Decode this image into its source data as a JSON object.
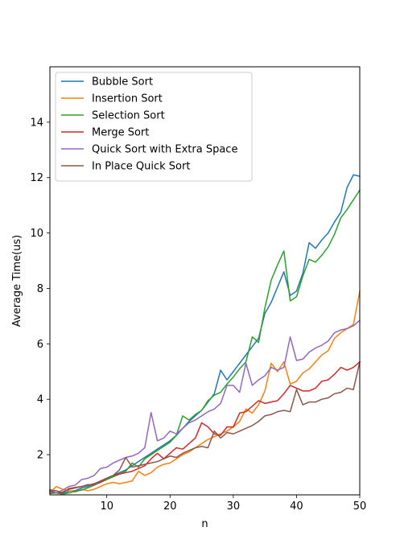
{
  "chart_data": {
    "type": "line",
    "title": "",
    "xlabel": "n",
    "ylabel": "Average Time(us)",
    "xlim": [
      1,
      50
    ],
    "ylim": [
      0.55,
      16.0
    ],
    "xticks": [
      10,
      20,
      30,
      40,
      50
    ],
    "yticks": [
      2,
      4,
      6,
      8,
      10,
      12,
      14
    ],
    "grid": false,
    "legend_position": "top-left",
    "x": [
      1,
      2,
      3,
      4,
      5,
      6,
      7,
      8,
      9,
      10,
      11,
      12,
      13,
      14,
      15,
      16,
      17,
      18,
      19,
      20,
      21,
      22,
      23,
      24,
      25,
      26,
      27,
      28,
      29,
      30,
      31,
      32,
      33,
      34,
      35,
      36,
      37,
      38,
      39,
      40,
      41,
      42,
      43,
      44,
      45,
      46,
      47,
      48,
      49,
      50
    ],
    "series": [
      {
        "name": "Bubble Sort",
        "color": "#1f77b4",
        "values": [
          0.65,
          0.62,
          0.6,
          0.68,
          0.7,
          0.8,
          0.85,
          0.95,
          1.05,
          1.15,
          1.25,
          1.35,
          1.45,
          1.6,
          1.75,
          1.9,
          2.05,
          2.2,
          2.35,
          2.5,
          2.7,
          2.95,
          3.2,
          3.4,
          3.6,
          3.9,
          4.2,
          5.05,
          4.7,
          5.0,
          5.3,
          5.6,
          5.9,
          6.2,
          7.1,
          7.5,
          8.05,
          8.6,
          7.75,
          7.9,
          8.55,
          9.65,
          9.45,
          9.75,
          10.0,
          10.4,
          10.75,
          11.65,
          12.1,
          12.05
        ]
      },
      {
        "name": "Insertion Sort",
        "color": "#ff7f0e",
        "values": [
          0.62,
          0.85,
          0.75,
          0.7,
          0.65,
          0.75,
          0.7,
          0.75,
          0.85,
          0.95,
          1.0,
          0.95,
          1.0,
          1.05,
          1.4,
          1.25,
          1.35,
          1.55,
          1.65,
          1.7,
          1.85,
          2.0,
          2.1,
          2.25,
          2.4,
          2.55,
          2.65,
          2.75,
          2.85,
          3.0,
          3.2,
          3.65,
          3.5,
          3.8,
          4.3,
          5.3,
          5.0,
          5.35,
          4.55,
          4.65,
          4.95,
          5.1,
          5.35,
          5.6,
          5.75,
          6.2,
          6.4,
          6.55,
          6.7,
          7.9
        ]
      },
      {
        "name": "Selection Sort",
        "color": "#2ca02c",
        "values": [
          0.6,
          0.62,
          0.58,
          0.62,
          0.68,
          0.72,
          0.8,
          0.9,
          1.0,
          1.1,
          1.2,
          1.3,
          1.4,
          1.7,
          1.55,
          1.85,
          2.0,
          2.15,
          2.3,
          2.45,
          2.7,
          3.4,
          3.25,
          3.45,
          3.6,
          3.95,
          4.15,
          4.25,
          4.55,
          4.8,
          5.1,
          5.35,
          6.25,
          6.05,
          7.3,
          8.3,
          8.85,
          9.35,
          7.55,
          7.7,
          8.45,
          9.05,
          8.95,
          9.2,
          9.5,
          9.95,
          10.55,
          10.85,
          11.2,
          11.55
        ]
      },
      {
        "name": "Merge Sort",
        "color": "#d62728",
        "values": [
          0.7,
          0.62,
          0.65,
          0.75,
          0.8,
          0.85,
          0.9,
          0.95,
          1.0,
          1.15,
          1.25,
          1.3,
          1.35,
          1.4,
          1.5,
          1.6,
          1.85,
          2.05,
          1.85,
          2.05,
          2.25,
          2.2,
          2.4,
          2.6,
          3.15,
          3.0,
          2.75,
          2.7,
          3.0,
          3.0,
          3.5,
          3.55,
          3.75,
          3.95,
          3.85,
          3.9,
          3.95,
          4.2,
          4.5,
          4.4,
          4.3,
          4.3,
          4.4,
          4.65,
          4.7,
          4.9,
          5.15,
          5.05,
          5.15,
          5.35
        ]
      },
      {
        "name": "Quick Sort with Extra Space",
        "color": "#9467bd",
        "values": [
          0.75,
          0.62,
          0.72,
          0.85,
          0.9,
          1.1,
          1.15,
          1.25,
          1.5,
          1.55,
          1.7,
          1.8,
          1.9,
          1.95,
          2.05,
          2.25,
          3.52,
          2.5,
          2.6,
          2.85,
          2.75,
          2.95,
          3.15,
          3.25,
          3.4,
          3.55,
          3.65,
          3.85,
          4.5,
          4.5,
          4.25,
          5.3,
          4.5,
          4.7,
          4.85,
          5.15,
          5.05,
          5.15,
          6.25,
          5.4,
          5.45,
          5.7,
          5.85,
          5.95,
          6.1,
          6.4,
          6.5,
          6.55,
          6.65,
          6.85
        ]
      },
      {
        "name": "In Place Quick Sort",
        "color": "#8c564b",
        "values": [
          0.72,
          0.7,
          0.62,
          0.78,
          0.82,
          0.85,
          0.92,
          0.9,
          1.05,
          1.15,
          1.25,
          1.45,
          1.9,
          1.55,
          1.6,
          1.65,
          1.7,
          1.75,
          1.85,
          1.95,
          1.9,
          2.05,
          2.15,
          2.25,
          2.3,
          2.25,
          2.85,
          2.6,
          2.8,
          2.75,
          2.85,
          2.95,
          3.05,
          3.2,
          3.4,
          3.45,
          3.55,
          3.6,
          3.55,
          4.35,
          3.8,
          3.9,
          3.9,
          4.0,
          4.05,
          4.2,
          4.25,
          4.4,
          4.35,
          5.35
        ]
      }
    ]
  }
}
